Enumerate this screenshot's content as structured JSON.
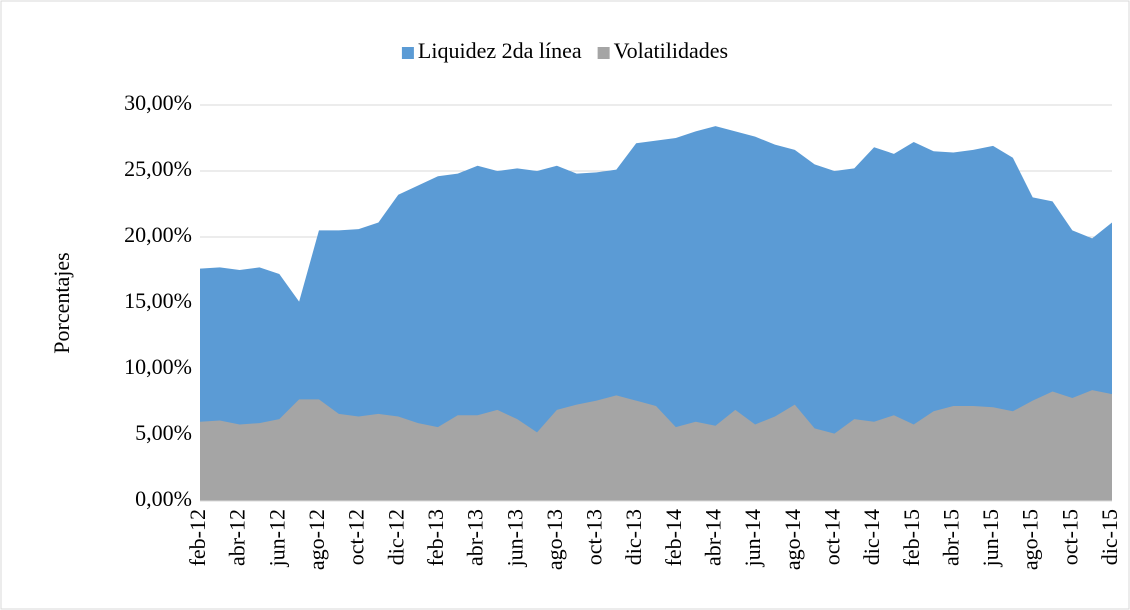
{
  "chart_data": {
    "type": "area",
    "y_axis_label": "Porcentajes",
    "categories": [
      "feb-12",
      null,
      "abr-12",
      null,
      "jun-12",
      null,
      "ago-12",
      null,
      "oct-12",
      null,
      "dic-12",
      null,
      "feb-13",
      null,
      "abr-13",
      null,
      "jun-13",
      null,
      "ago-13",
      null,
      "oct-13",
      null,
      "dic-13",
      null,
      "feb-14",
      null,
      "abr-14",
      null,
      "jun-14",
      null,
      "ago-14",
      null,
      "oct-14",
      null,
      "dic-14",
      null,
      "feb-15",
      null,
      "abr-15",
      null,
      "jun-15",
      null,
      "ago-15",
      null,
      "oct-15",
      null,
      "dic-15"
    ],
    "series": [
      {
        "name": "Liquidez 2da línea",
        "color": "#5b9bd5",
        "values": [
          17.6,
          17.7,
          17.5,
          17.7,
          17.2,
          15.1,
          20.5,
          20.5,
          20.6,
          21.1,
          23.2,
          23.9,
          24.6,
          24.8,
          25.4,
          25.0,
          25.2,
          25.0,
          25.4,
          24.8,
          24.9,
          25.1,
          27.1,
          27.3,
          27.5,
          28.0,
          28.4,
          28.0,
          27.6,
          27.0,
          26.6,
          25.5,
          25.0,
          25.2,
          26.8,
          26.3,
          27.2,
          26.5,
          26.4,
          26.6,
          26.9,
          26.0,
          23.0,
          22.7,
          20.5,
          19.9,
          21.1
        ]
      },
      {
        "name": "Volatilidades",
        "color": "#a5a5a5",
        "values": [
          6.0,
          6.1,
          5.8,
          5.9,
          6.2,
          7.7,
          7.7,
          6.6,
          6.4,
          6.6,
          6.4,
          5.9,
          5.6,
          6.5,
          6.5,
          6.9,
          6.2,
          5.2,
          6.9,
          7.3,
          7.6,
          8.0,
          7.6,
          7.2,
          5.6,
          6.0,
          5.7,
          6.9,
          5.8,
          6.4,
          7.3,
          5.5,
          5.1,
          6.2,
          6.0,
          6.5,
          5.8,
          6.8,
          7.2,
          7.2,
          7.1,
          6.8,
          7.6,
          8.3,
          7.8,
          8.4,
          8.1
        ]
      }
    ],
    "ylim": [
      0,
      30
    ],
    "yticks": [
      {
        "value": 0,
        "label": "0,00%"
      },
      {
        "value": 5,
        "label": "5,00%"
      },
      {
        "value": 10,
        "label": "10,00%"
      },
      {
        "value": 15,
        "label": "15,00%"
      },
      {
        "value": 20,
        "label": "20,00%"
      },
      {
        "value": 25,
        "label": "25,00%"
      },
      {
        "value": 30,
        "label": "30,00%"
      }
    ],
    "grid": true,
    "legend": "top"
  }
}
